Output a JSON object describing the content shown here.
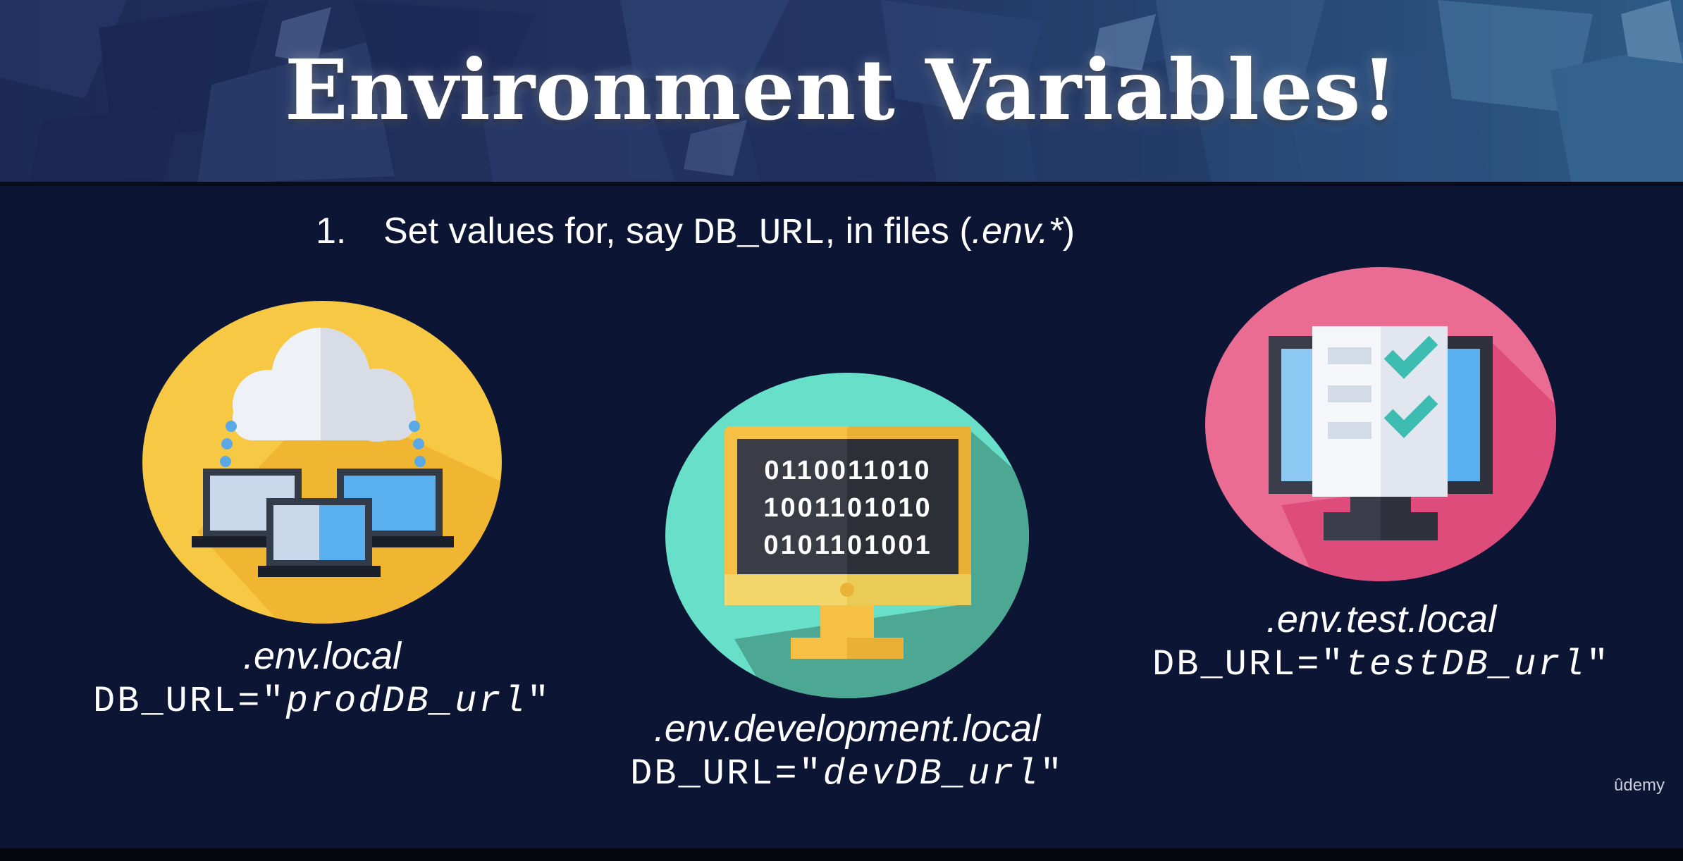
{
  "slide": {
    "title": "Environment Variables!",
    "step": {
      "number": "1.",
      "text_before": "Set values for, say ",
      "code": "DB_URL",
      "text_middle": ", in files (",
      "files_pattern": ".env.*",
      "text_after": ")"
    }
  },
  "env_files": [
    {
      "filename": ".env.local",
      "db_prefix": "DB_URL=\"",
      "db_value": "prodDB_url",
      "db_suffix": "\"",
      "icon": "cloud-network-icon",
      "circle_color": "#f7c843"
    },
    {
      "filename": ".env.development.local",
      "db_prefix": "DB_URL=\"",
      "db_value": "devDB_url",
      "db_suffix": "\"",
      "icon": "binary-monitor-icon",
      "circle_color": "#68dfc8",
      "binary_lines": [
        "0110011010",
        "1001101010",
        "0101101001"
      ]
    },
    {
      "filename": ".env.test.local",
      "db_prefix": "DB_URL=\"",
      "db_value": "testDB_url",
      "db_suffix": "\"",
      "icon": "checklist-monitor-icon",
      "circle_color": "#ea6c93"
    }
  ],
  "watermark": "ûdemy"
}
